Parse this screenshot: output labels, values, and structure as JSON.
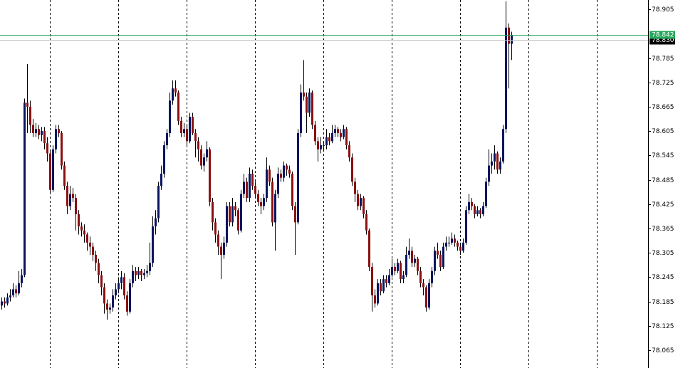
{
  "chart_data": {
    "type": "candlestick",
    "up_color": "#0a1660",
    "down_color": "#8b1010",
    "wick_color": "#000000",
    "ylim": [
      78.021,
      78.928
    ],
    "yticks": [
      78.905,
      78.785,
      78.725,
      78.665,
      78.605,
      78.545,
      78.485,
      78.425,
      78.365,
      78.305,
      78.245,
      78.185,
      78.125,
      78.065
    ],
    "ask": {
      "value": 78.842,
      "color": "#26a65b"
    },
    "bid": {
      "value": {
        "value": 78.83,
        "label": "78.830"
      },
      "color": "#000000"
    },
    "ohlc": [
      [
        78.175,
        78.195,
        78.165,
        78.185
      ],
      [
        78.185,
        78.195,
        78.17,
        78.18
      ],
      [
        78.18,
        78.205,
        78.175,
        78.195
      ],
      [
        78.195,
        78.215,
        78.185,
        78.2
      ],
      [
        78.2,
        78.23,
        78.195,
        78.215
      ],
      [
        78.215,
        78.225,
        78.195,
        78.205
      ],
      [
        78.205,
        78.26,
        78.2,
        78.23
      ],
      [
        78.23,
        78.265,
        78.22,
        78.25
      ],
      [
        78.25,
        78.685,
        78.245,
        78.675
      ],
      [
        78.675,
        78.77,
        78.6,
        78.665
      ],
      [
        78.665,
        78.68,
        78.6,
        78.62
      ],
      [
        78.62,
        78.635,
        78.59,
        78.6
      ],
      [
        78.6,
        78.625,
        78.59,
        78.61
      ],
      [
        78.61,
        78.62,
        78.585,
        78.595
      ],
      [
        78.595,
        78.615,
        78.58,
        78.605
      ],
      [
        78.605,
        78.615,
        78.56,
        78.575
      ],
      [
        78.575,
        78.59,
        78.53,
        78.55
      ],
      [
        78.55,
        78.56,
        78.45,
        78.46
      ],
      [
        78.46,
        78.57,
        78.455,
        78.56
      ],
      [
        78.56,
        78.62,
        78.55,
        78.61
      ],
      [
        78.61,
        78.62,
        78.59,
        78.6
      ],
      [
        78.6,
        78.605,
        78.51,
        78.52
      ],
      [
        78.52,
        78.53,
        78.46,
        78.47
      ],
      [
        78.47,
        78.48,
        78.4,
        78.42
      ],
      [
        78.42,
        78.47,
        78.41,
        78.45
      ],
      [
        78.45,
        78.465,
        78.43,
        78.44
      ],
      [
        78.44,
        78.45,
        78.36,
        78.4
      ],
      [
        78.4,
        78.41,
        78.35,
        78.37
      ],
      [
        78.37,
        78.38,
        78.345,
        78.36
      ],
      [
        78.36,
        78.375,
        78.33,
        78.35
      ],
      [
        78.35,
        78.355,
        78.31,
        78.33
      ],
      [
        78.33,
        78.345,
        78.3,
        78.32
      ],
      [
        78.32,
        78.33,
        78.285,
        78.3
      ],
      [
        78.3,
        78.31,
        78.26,
        78.28
      ],
      [
        78.28,
        78.29,
        78.23,
        78.25
      ],
      [
        78.25,
        78.26,
        78.2,
        78.22
      ],
      [
        78.22,
        78.23,
        78.155,
        78.18
      ],
      [
        78.18,
        78.19,
        78.14,
        78.165
      ],
      [
        78.165,
        78.18,
        78.155,
        78.17
      ],
      [
        78.17,
        78.215,
        78.16,
        78.2
      ],
      [
        78.2,
        78.23,
        78.19,
        78.215
      ],
      [
        78.215,
        78.245,
        78.205,
        78.23
      ],
      [
        78.23,
        78.26,
        78.215,
        78.245
      ],
      [
        78.245,
        78.255,
        78.19,
        78.2
      ],
      [
        78.2,
        78.21,
        78.15,
        78.16
      ],
      [
        78.16,
        78.24,
        78.155,
        78.23
      ],
      [
        78.23,
        78.275,
        78.22,
        78.26
      ],
      [
        78.26,
        78.27,
        78.235,
        78.25
      ],
      [
        78.25,
        78.27,
        78.24,
        78.26
      ],
      [
        78.26,
        78.265,
        78.235,
        78.25
      ],
      [
        78.25,
        78.265,
        78.24,
        78.255
      ],
      [
        78.255,
        78.275,
        78.245,
        78.26
      ],
      [
        78.26,
        78.33,
        78.25,
        78.28
      ],
      [
        78.28,
        78.395,
        78.27,
        78.37
      ],
      [
        78.37,
        78.41,
        78.35,
        78.39
      ],
      [
        78.39,
        78.48,
        78.38,
        78.47
      ],
      [
        78.47,
        78.52,
        78.46,
        78.5
      ],
      [
        78.5,
        78.58,
        78.49,
        78.57
      ],
      [
        78.57,
        78.61,
        78.56,
        78.6
      ],
      [
        78.6,
        78.7,
        78.59,
        78.68
      ],
      [
        78.68,
        78.73,
        78.67,
        78.71
      ],
      [
        78.71,
        78.73,
        78.69,
        78.7
      ],
      [
        78.7,
        78.705,
        78.62,
        78.63
      ],
      [
        78.63,
        78.64,
        78.59,
        78.6
      ],
      [
        78.6,
        78.625,
        78.59,
        78.61
      ],
      [
        78.61,
        78.62,
        78.57,
        78.58
      ],
      [
        78.58,
        78.65,
        78.575,
        78.64
      ],
      [
        78.64,
        78.65,
        78.595,
        78.6
      ],
      [
        78.6,
        78.61,
        78.54,
        78.58
      ],
      [
        78.58,
        78.59,
        78.53,
        78.56
      ],
      [
        78.56,
        78.57,
        78.51,
        78.52
      ],
      [
        78.52,
        78.55,
        78.505,
        78.54
      ],
      [
        78.54,
        78.58,
        78.53,
        78.56
      ],
      [
        78.56,
        78.565,
        78.42,
        78.43
      ],
      [
        78.43,
        78.44,
        78.36,
        78.38
      ],
      [
        78.38,
        78.39,
        78.33,
        78.35
      ],
      [
        78.35,
        78.36,
        78.3,
        78.32
      ],
      [
        78.32,
        78.33,
        78.24,
        78.3
      ],
      [
        78.3,
        78.345,
        78.29,
        78.33
      ],
      [
        78.33,
        78.43,
        78.32,
        78.42
      ],
      [
        78.42,
        78.43,
        78.37,
        78.38
      ],
      [
        78.38,
        78.44,
        78.37,
        78.42
      ],
      [
        78.42,
        78.43,
        78.395,
        78.41
      ],
      [
        78.41,
        78.415,
        78.35,
        78.36
      ],
      [
        78.36,
        78.46,
        78.355,
        78.45
      ],
      [
        78.45,
        78.5,
        78.44,
        78.48
      ],
      [
        78.48,
        78.49,
        78.43,
        78.44
      ],
      [
        78.44,
        78.515,
        78.43,
        78.5
      ],
      [
        78.5,
        78.51,
        78.46,
        78.47
      ],
      [
        78.47,
        78.48,
        78.44,
        78.45
      ],
      [
        78.45,
        78.46,
        78.42,
        78.43
      ],
      [
        78.43,
        78.44,
        78.4,
        78.42
      ],
      [
        78.42,
        78.45,
        78.41,
        78.44
      ],
      [
        78.44,
        78.54,
        78.43,
        78.51
      ],
      [
        78.51,
        78.52,
        78.47,
        78.48
      ],
      [
        78.48,
        78.49,
        78.37,
        78.38
      ],
      [
        78.38,
        78.46,
        78.31,
        78.45
      ],
      [
        78.45,
        78.515,
        78.44,
        78.5
      ],
      [
        78.5,
        78.51,
        78.48,
        78.49
      ],
      [
        78.49,
        78.53,
        78.48,
        78.52
      ],
      [
        78.52,
        78.525,
        78.495,
        78.51
      ],
      [
        78.51,
        78.52,
        78.49,
        78.5
      ],
      [
        78.5,
        78.505,
        78.41,
        78.42
      ],
      [
        78.42,
        78.43,
        78.3,
        78.38
      ],
      [
        78.38,
        78.61,
        78.375,
        78.6
      ],
      [
        78.6,
        78.72,
        78.59,
        78.7
      ],
      [
        78.7,
        78.78,
        78.68,
        78.69
      ],
      [
        78.69,
        78.7,
        78.6,
        78.65
      ],
      [
        78.65,
        78.71,
        78.64,
        78.7
      ],
      [
        78.7,
        78.705,
        78.61,
        78.62
      ],
      [
        78.62,
        78.63,
        78.57,
        78.58
      ],
      [
        78.58,
        78.59,
        78.53,
        78.56
      ],
      [
        78.56,
        78.59,
        78.55,
        78.57
      ],
      [
        78.57,
        78.58,
        78.555,
        78.57
      ],
      [
        78.57,
        78.61,
        78.56,
        78.59
      ],
      [
        78.59,
        78.6,
        78.57,
        78.58
      ],
      [
        78.58,
        78.62,
        78.575,
        78.6
      ],
      [
        78.6,
        78.62,
        78.59,
        78.61
      ],
      [
        78.61,
        78.615,
        78.59,
        78.6
      ],
      [
        78.6,
        78.61,
        78.58,
        78.59
      ],
      [
        78.59,
        78.62,
        78.585,
        78.61
      ],
      [
        78.61,
        78.615,
        78.56,
        78.57
      ],
      [
        78.57,
        78.58,
        78.53,
        78.54
      ],
      [
        78.54,
        78.55,
        78.47,
        78.48
      ],
      [
        78.48,
        78.49,
        78.43,
        78.45
      ],
      [
        78.45,
        78.46,
        78.41,
        78.42
      ],
      [
        78.42,
        78.45,
        78.41,
        78.44
      ],
      [
        78.44,
        78.445,
        78.39,
        78.4
      ],
      [
        78.4,
        78.41,
        78.35,
        78.36
      ],
      [
        78.36,
        78.365,
        78.26,
        78.27
      ],
      [
        78.27,
        78.28,
        78.16,
        78.2
      ],
      [
        78.2,
        78.215,
        78.17,
        78.18
      ],
      [
        78.18,
        78.24,
        78.175,
        78.23
      ],
      [
        78.23,
        78.24,
        78.2,
        78.21
      ],
      [
        78.21,
        78.25,
        78.205,
        78.24
      ],
      [
        78.24,
        78.25,
        78.22,
        78.23
      ],
      [
        78.23,
        78.265,
        78.225,
        78.25
      ],
      [
        78.25,
        78.29,
        78.245,
        78.27
      ],
      [
        78.27,
        78.28,
        78.25,
        78.26
      ],
      [
        78.26,
        78.29,
        78.255,
        78.28
      ],
      [
        78.28,
        78.285,
        78.23,
        78.24
      ],
      [
        78.24,
        78.26,
        78.23,
        78.25
      ],
      [
        78.25,
        78.32,
        78.245,
        78.3
      ],
      [
        78.3,
        78.34,
        78.29,
        78.31
      ],
      [
        78.31,
        78.32,
        78.27,
        78.28
      ],
      [
        78.28,
        78.3,
        78.27,
        78.29
      ],
      [
        78.29,
        78.295,
        78.25,
        78.26
      ],
      [
        78.26,
        78.27,
        78.22,
        78.23
      ],
      [
        78.23,
        78.24,
        78.2,
        78.22
      ],
      [
        78.22,
        78.225,
        78.16,
        78.17
      ],
      [
        78.17,
        78.24,
        78.165,
        78.23
      ],
      [
        78.23,
        78.27,
        78.22,
        78.26
      ],
      [
        78.26,
        78.32,
        78.25,
        78.31
      ],
      [
        78.31,
        78.33,
        78.29,
        78.3
      ],
      [
        78.3,
        78.31,
        78.26,
        78.27
      ],
      [
        78.27,
        78.33,
        78.265,
        78.32
      ],
      [
        78.32,
        78.345,
        78.31,
        78.33
      ],
      [
        78.33,
        78.345,
        78.32,
        78.33
      ],
      [
        78.33,
        78.355,
        78.325,
        78.34
      ],
      [
        78.34,
        78.35,
        78.32,
        78.33
      ],
      [
        78.33,
        78.335,
        78.31,
        78.32
      ],
      [
        78.32,
        78.33,
        78.3,
        78.31
      ],
      [
        78.31,
        78.34,
        78.305,
        78.33
      ],
      [
        78.33,
        78.42,
        78.325,
        78.41
      ],
      [
        78.41,
        78.45,
        78.4,
        78.43
      ],
      [
        78.43,
        78.44,
        78.41,
        78.42
      ],
      [
        78.42,
        78.425,
        78.39,
        78.4
      ],
      [
        78.4,
        78.42,
        78.395,
        78.41
      ],
      [
        78.41,
        78.415,
        78.39,
        78.4
      ],
      [
        78.4,
        78.43,
        78.395,
        78.42
      ],
      [
        78.42,
        78.49,
        78.415,
        78.48
      ],
      [
        78.48,
        78.56,
        78.47,
        78.52
      ],
      [
        78.52,
        78.55,
        78.5,
        78.53
      ],
      [
        78.53,
        78.57,
        78.51,
        78.55
      ],
      [
        78.55,
        78.555,
        78.5,
        78.51
      ],
      [
        78.51,
        78.54,
        78.5,
        78.53
      ],
      [
        78.53,
        78.62,
        78.525,
        78.61
      ],
      [
        78.61,
        78.925,
        78.6,
        78.86
      ],
      [
        78.86,
        78.87,
        78.71,
        78.82
      ],
      [
        78.82,
        78.85,
        78.78,
        78.842
      ]
    ]
  }
}
